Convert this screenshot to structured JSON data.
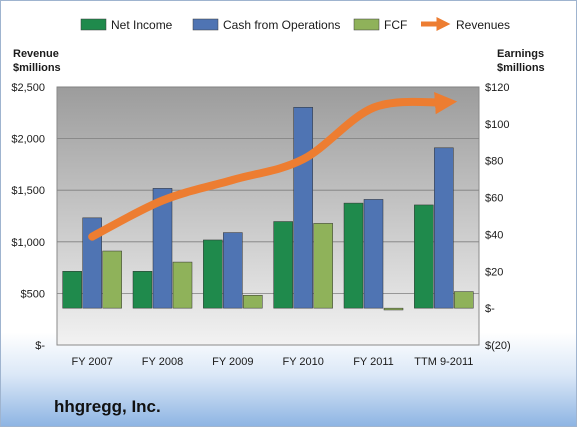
{
  "company_name": "hhgregg, Inc.",
  "colors": {
    "net_income": "#1f8a4c",
    "cash_from_operations": "#4f74b3",
    "fcf": "#8fb25a",
    "revenues": "#ed7d31"
  },
  "chart_data": {
    "type": "bar",
    "categories": [
      "FY 2007",
      "FY 2008",
      "FY 2009",
      "FY 2010",
      "FY 2011",
      "TTM 9-2011"
    ],
    "left_axis": {
      "title_line1": "Revenue",
      "title_line2": "$millions",
      "range": [
        0,
        2500
      ],
      "ticks": [
        0,
        500,
        1000,
        1500,
        2000,
        2500
      ],
      "tick_labels": [
        "$-",
        "$500",
        "$1,000",
        "$1,500",
        "$2,000",
        "$2,500"
      ]
    },
    "right_axis": {
      "title_line1": "Earnings",
      "title_line2": "$millions",
      "range": [
        -20,
        120
      ],
      "ticks": [
        -20,
        0,
        20,
        40,
        60,
        80,
        100,
        120
      ],
      "tick_labels": [
        "$(20)",
        "$-",
        "$20",
        "$40",
        "$60",
        "$80",
        "$100",
        "$120"
      ]
    },
    "series": [
      {
        "name": "Net Income",
        "axis": "right",
        "values": [
          20,
          20,
          37,
          47,
          57,
          56
        ]
      },
      {
        "name": "Cash from Operations",
        "axis": "right",
        "values": [
          49,
          65,
          41,
          109,
          59,
          87
        ]
      },
      {
        "name": "FCF",
        "axis": "right",
        "values": [
          31,
          25,
          7,
          46,
          -1,
          9
        ]
      }
    ],
    "line_series": {
      "name": "Revenues",
      "axis": "left",
      "values": [
        1050,
        1400,
        1600,
        1800,
        2300,
        2350
      ]
    },
    "grid": true,
    "legend_position": "top"
  }
}
